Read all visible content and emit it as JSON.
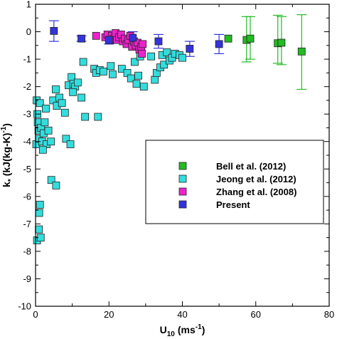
{
  "chart_data": {
    "type": "scatter",
    "title": "",
    "xlabel": "U",
    "xlabel_sub": "10",
    "xlabel_unit": "(ms",
    "xlabel_unit_sup": "-1",
    "xlabel_close": ")",
    "ylabel": "k",
    "ylabel_sub": "*",
    "ylabel_unit": "(kJ(kg-K)",
    "ylabel_unit_sup": "-1",
    "ylabel_close": ")",
    "xlim": [
      0,
      80
    ],
    "ylim": [
      -10,
      1
    ],
    "x_ticks": [
      "0",
      "20",
      "40",
      "60",
      "80"
    ],
    "y_ticks": [
      "1",
      "0",
      "-1",
      "-2",
      "-3",
      "-4",
      "-5",
      "-6",
      "-7",
      "-8",
      "-9",
      "-10"
    ],
    "grid": false,
    "legend_position": "center-right",
    "series": [
      {
        "name": "Bell et al. (2012)",
        "color": "#22bb22",
        "marker": "square",
        "points": [
          {
            "x": 52.5,
            "y": -0.25
          },
          {
            "x": 57.5,
            "y": -0.3,
            "err_low": -1.1,
            "err_high": 0.55
          },
          {
            "x": 58.5,
            "y": -0.25,
            "err_low": -1.0,
            "err_high": 0.55
          },
          {
            "x": 66,
            "y": -0.42,
            "err_low": -1.15,
            "err_high": 0.6
          },
          {
            "x": 67,
            "y": -0.4,
            "err_low": -1.2,
            "err_high": 0.55
          },
          {
            "x": 72.5,
            "y": -0.72,
            "err_low": -2.1,
            "err_high": 0.62
          }
        ]
      },
      {
        "name": "Jeong et al. (2012)",
        "color": "#33dddd",
        "marker": "square",
        "points": [
          {
            "x": 0.3,
            "y": -2.5
          },
          {
            "x": 0.5,
            "y": -3.0
          },
          {
            "x": 0.6,
            "y": -3.3
          },
          {
            "x": 0.8,
            "y": -3.6
          },
          {
            "x": 0.2,
            "y": -4.1
          },
          {
            "x": 0.9,
            "y": -3.9
          },
          {
            "x": 1.5,
            "y": -3.5
          },
          {
            "x": 1.8,
            "y": -4.0
          },
          {
            "x": 2.2,
            "y": -3.7
          },
          {
            "x": 2.5,
            "y": -3.3
          },
          {
            "x": 3.0,
            "y": -4.1
          },
          {
            "x": 3.5,
            "y": -3.6
          },
          {
            "x": 2.0,
            "y": -4.3
          },
          {
            "x": 1.2,
            "y": -2.6
          },
          {
            "x": 2.8,
            "y": -2.8
          },
          {
            "x": 4.2,
            "y": -4.0
          },
          {
            "x": 0.4,
            "y": -7.6
          },
          {
            "x": 0.9,
            "y": -7.2
          },
          {
            "x": 1.4,
            "y": -7.5
          },
          {
            "x": 1.0,
            "y": -6.6
          },
          {
            "x": 1.2,
            "y": -6.3
          },
          {
            "x": 4.3,
            "y": -5.4
          },
          {
            "x": 5.6,
            "y": -5.6
          },
          {
            "x": 5.5,
            "y": -2.1
          },
          {
            "x": 4.8,
            "y": -2.5
          },
          {
            "x": 5.8,
            "y": -2.7
          },
          {
            "x": 6.5,
            "y": -2.4
          },
          {
            "x": 7.2,
            "y": -2.6
          },
          {
            "x": 8.0,
            "y": -2.95
          },
          {
            "x": 8.3,
            "y": -3.9
          },
          {
            "x": 9.5,
            "y": -4.1
          },
          {
            "x": 9.0,
            "y": -1.95
          },
          {
            "x": 9.8,
            "y": -1.65
          },
          {
            "x": 10.3,
            "y": -1.9
          },
          {
            "x": 10.8,
            "y": -2.0
          },
          {
            "x": 11.5,
            "y": -1.85
          },
          {
            "x": 10.2,
            "y": -2.2
          },
          {
            "x": 12.5,
            "y": -2.4
          },
          {
            "x": 13.5,
            "y": -3.1
          },
          {
            "x": 13.0,
            "y": -1.1
          },
          {
            "x": 16.0,
            "y": -1.35
          },
          {
            "x": 16.5,
            "y": -1.5
          },
          {
            "x": 17.5,
            "y": -1.4
          },
          {
            "x": 18.5,
            "y": -1.45
          },
          {
            "x": 17.0,
            "y": -3.1
          },
          {
            "x": 20.5,
            "y": -1.25
          },
          {
            "x": 21.0,
            "y": -1.55
          },
          {
            "x": 23.5,
            "y": -1.35
          },
          {
            "x": 25.0,
            "y": -1.5
          },
          {
            "x": 26.0,
            "y": -1.7
          },
          {
            "x": 27.0,
            "y": -1.1
          },
          {
            "x": 28.0,
            "y": -1.6
          },
          {
            "x": 27.5,
            "y": -1.9
          },
          {
            "x": 29.5,
            "y": -2.0
          },
          {
            "x": 28.5,
            "y": -0.9
          },
          {
            "x": 31.5,
            "y": -0.9
          },
          {
            "x": 32.5,
            "y": -1.75
          },
          {
            "x": 33.0,
            "y": -1.5
          },
          {
            "x": 34.0,
            "y": -1.3
          },
          {
            "x": 34.5,
            "y": -0.85
          },
          {
            "x": 35.0,
            "y": -1.2
          },
          {
            "x": 35.8,
            "y": -0.75
          },
          {
            "x": 36.5,
            "y": -1.05
          },
          {
            "x": 37.2,
            "y": -0.95
          },
          {
            "x": 38.0,
            "y": -0.8
          },
          {
            "x": 39.2,
            "y": -0.85
          },
          {
            "x": 40.0,
            "y": -0.95
          }
        ]
      },
      {
        "name": "Zhang et al. (2008)",
        "color": "#ee22cc",
        "marker": "square",
        "points": [
          {
            "x": 16.5,
            "y": -0.15
          },
          {
            "x": 19.0,
            "y": -0.2
          },
          {
            "x": 19.6,
            "y": -0.1
          },
          {
            "x": 20.2,
            "y": -0.3
          },
          {
            "x": 20.8,
            "y": -0.15
          },
          {
            "x": 21.3,
            "y": -0.25
          },
          {
            "x": 21.8,
            "y": -0.05
          },
          {
            "x": 22.2,
            "y": -0.3
          },
          {
            "x": 22.8,
            "y": -0.2
          },
          {
            "x": 23.3,
            "y": -0.1
          },
          {
            "x": 23.8,
            "y": -0.35
          },
          {
            "x": 24.3,
            "y": -0.25
          },
          {
            "x": 24.8,
            "y": -0.45
          },
          {
            "x": 25.3,
            "y": -0.3
          },
          {
            "x": 25.8,
            "y": -0.15
          },
          {
            "x": 26.3,
            "y": -0.55
          },
          {
            "x": 26.8,
            "y": -0.35
          },
          {
            "x": 27.3,
            "y": -0.5
          },
          {
            "x": 27.8,
            "y": -0.4
          },
          {
            "x": 28.3,
            "y": -0.65
          },
          {
            "x": 28.8,
            "y": -0.55
          },
          {
            "x": 29.0,
            "y": -0.8
          },
          {
            "x": 29.2,
            "y": -0.45
          }
        ]
      },
      {
        "name": "Present",
        "color": "#3333dd",
        "marker": "square",
        "points": [
          {
            "x": 5,
            "y": 0.03,
            "err_low": -0.35,
            "err_high": 0.4
          },
          {
            "x": 12.5,
            "y": -0.25,
            "err_low": -0.35,
            "err_high": -0.15
          },
          {
            "x": 20,
            "y": -0.3,
            "err_low": -0.45,
            "err_high": -0.15
          },
          {
            "x": 26.5,
            "y": -0.22,
            "err_low": -0.45,
            "err_high": 0.0
          },
          {
            "x": 33.5,
            "y": -0.35,
            "err_low": -0.6,
            "err_high": -0.1
          },
          {
            "x": 42,
            "y": -0.62,
            "err_low": -0.9,
            "err_high": -0.35
          },
          {
            "x": 50,
            "y": -0.45,
            "err_low": -0.8,
            "err_high": -0.1
          }
        ]
      }
    ]
  }
}
